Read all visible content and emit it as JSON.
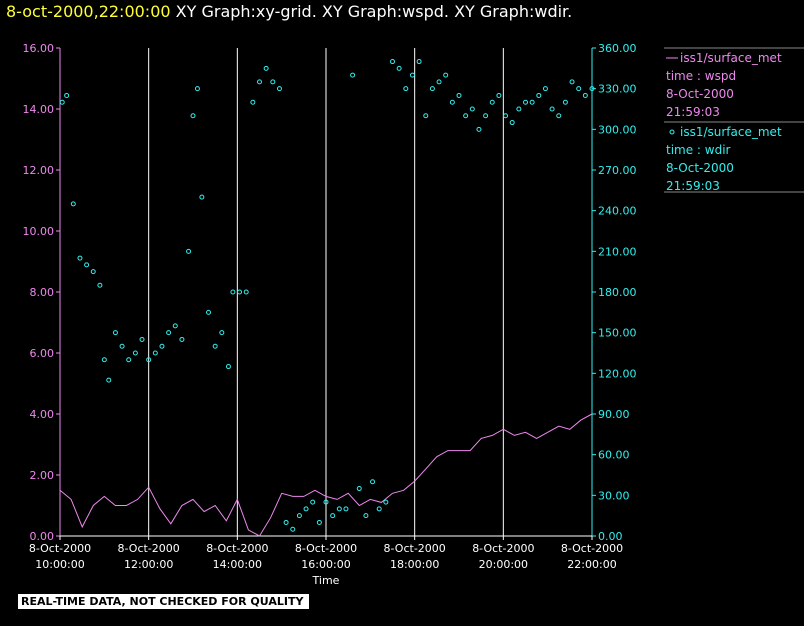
{
  "header": {
    "datetime": "8-oct-2000,22:00:00",
    "plot_titles": "XY Graph:xy-grid.  XY Graph:wspd.  XY Graph:wdir."
  },
  "footer": {
    "notice": "REAL-TIME DATA, NOT CHECKED FOR QUALITY"
  },
  "colors": {
    "wspd": "#ee88ee",
    "wdir": "#33eeee",
    "background": "#000000",
    "grid": "#ffffff",
    "header_date": "#ffff33"
  },
  "legend": [
    {
      "series": "wspd",
      "lines": [
        "iss1/surface_met",
        "time : wspd",
        "8-Oct-2000",
        "21:59:03"
      ]
    },
    {
      "series": "wdir",
      "lines": [
        "iss1/surface_met",
        "time : wdir",
        "8-Oct-2000",
        "21:59:03"
      ]
    }
  ],
  "chart_data": {
    "type": "line",
    "xlabel": "Time",
    "x_tick_labels": [
      [
        "8-Oct-2000",
        "10:00:00"
      ],
      [
        "8-Oct-2000",
        "12:00:00"
      ],
      [
        "8-Oct-2000",
        "14:00:00"
      ],
      [
        "8-Oct-2000",
        "16:00:00"
      ],
      [
        "8-Oct-2000",
        "18:00:00"
      ],
      [
        "8-Oct-2000",
        "20:00:00"
      ],
      [
        "8-Oct-2000",
        "22:00:00"
      ]
    ],
    "x_ticks_hours": [
      10,
      12,
      14,
      16,
      18,
      20,
      22
    ],
    "xlim_hours": [
      10,
      22
    ],
    "y_left": {
      "ticks": [
        "0.00",
        "2.00",
        "4.00",
        "6.00",
        "8.00",
        "10.00",
        "12.00",
        "14.00",
        "16.00"
      ],
      "lim": [
        0,
        16
      ]
    },
    "y_right": {
      "ticks": [
        "0.00",
        "30.00",
        "60.00",
        "90.00",
        "120.00",
        "150.00",
        "180.00",
        "210.00",
        "240.00",
        "270.00",
        "300.00",
        "330.00",
        "360.00"
      ],
      "lim": [
        0,
        360
      ]
    },
    "vertical_grid": true,
    "series": [
      {
        "key": "wspd",
        "axis": "left",
        "style": "line",
        "x_hours": [
          10.0,
          10.25,
          10.5,
          10.75,
          11.0,
          11.25,
          11.5,
          11.75,
          12.0,
          12.25,
          12.5,
          12.75,
          13.0,
          13.25,
          13.5,
          13.75,
          14.0,
          14.25,
          14.5,
          14.75,
          15.0,
          15.25,
          15.5,
          15.75,
          16.0,
          16.25,
          16.5,
          16.75,
          17.0,
          17.25,
          17.5,
          17.75,
          18.0,
          18.25,
          18.5,
          18.75,
          19.0,
          19.25,
          19.5,
          19.75,
          20.0,
          20.25,
          20.5,
          20.75,
          21.0,
          21.25,
          21.5,
          21.75,
          22.0
        ],
        "values": [
          1.5,
          1.2,
          0.3,
          1.0,
          1.3,
          1.0,
          1.0,
          1.2,
          1.6,
          0.9,
          0.4,
          1.0,
          1.2,
          0.8,
          1.0,
          0.5,
          1.2,
          0.2,
          0.0,
          0.6,
          1.4,
          1.3,
          1.3,
          1.5,
          1.3,
          1.2,
          1.4,
          1.0,
          1.2,
          1.1,
          1.4,
          1.5,
          1.8,
          2.2,
          2.6,
          2.8,
          2.8,
          2.8,
          3.2,
          3.3,
          3.5,
          3.3,
          3.4,
          3.2,
          3.4,
          3.6,
          3.5,
          3.8,
          4.0
        ]
      },
      {
        "key": "wdir",
        "axis": "right",
        "style": "points",
        "x_hours": [
          10.05,
          10.15,
          10.3,
          10.45,
          10.6,
          10.75,
          10.9,
          11.0,
          11.1,
          11.25,
          11.4,
          11.55,
          11.7,
          11.85,
          12.0,
          12.15,
          12.3,
          12.45,
          12.6,
          12.75,
          12.9,
          13.0,
          13.1,
          13.2,
          13.35,
          13.5,
          13.65,
          13.8,
          13.9,
          14.05,
          14.2,
          14.35,
          14.5,
          14.65,
          14.8,
          14.95,
          15.1,
          15.25,
          15.4,
          15.55,
          15.7,
          15.85,
          16.0,
          16.15,
          16.3,
          16.45,
          16.6,
          16.75,
          16.9,
          17.05,
          17.2,
          17.35,
          17.5,
          17.65,
          17.8,
          17.95,
          18.1,
          18.25,
          18.4,
          18.55,
          18.7,
          18.85,
          19.0,
          19.15,
          19.3,
          19.45,
          19.6,
          19.75,
          19.9,
          20.05,
          20.2,
          20.35,
          20.5,
          20.65,
          20.8,
          20.95,
          21.1,
          21.25,
          21.4,
          21.55,
          21.7,
          21.85,
          22.0
        ],
        "values": [
          320,
          325,
          245,
          205,
          200,
          195,
          185,
          130,
          115,
          150,
          140,
          130,
          135,
          145,
          130,
          135,
          140,
          150,
          155,
          145,
          210,
          310,
          330,
          250,
          165,
          140,
          150,
          125,
          180,
          180,
          180,
          320,
          335,
          345,
          335,
          330,
          10,
          5,
          15,
          20,
          25,
          10,
          25,
          15,
          20,
          20,
          340,
          35,
          15,
          40,
          20,
          25,
          350,
          345,
          330,
          340,
          350,
          310,
          330,
          335,
          340,
          320,
          325,
          310,
          315,
          300,
          310,
          320,
          325,
          310,
          305,
          315,
          320,
          320,
          325,
          330,
          315,
          310,
          320,
          335,
          330,
          325,
          330
        ]
      }
    ]
  }
}
